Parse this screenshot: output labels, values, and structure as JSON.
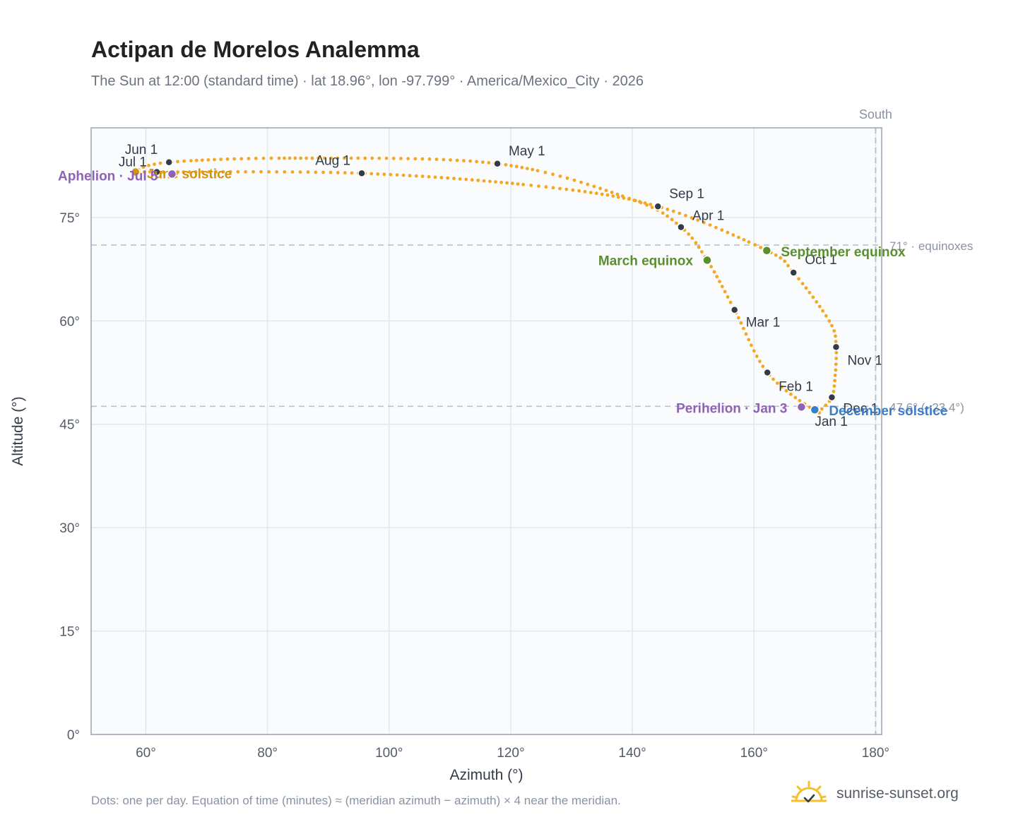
{
  "header": {
    "title": "Actipan de Morelos Analemma",
    "subtitle": "The Sun at 12:00 (standard time) · lat 18.96°, lon -97.799° · America/Mexico_City · 2026"
  },
  "footer": {
    "note": "Dots: one per day. Equation of time (minutes) ≈ (meridian azimuth − azimuth) × 4 near the meridian.",
    "brand": "sunrise-sunset.org"
  },
  "colors": {
    "path": "#f5a623",
    "month_dot": "#333b48",
    "equinox": "#5a8f2e",
    "solstice_summer": "#d4940a",
    "solstice_winter": "#3b7cc4",
    "apsis": "#8e63b5",
    "ref_line": "#b8c2cc",
    "plot_bg": "#f9fbfd",
    "grid": "#e3e8ee",
    "frame": "#9aa4b0"
  },
  "chart_data": {
    "type": "scatter",
    "title": "Actipan de Morelos Analemma",
    "xlabel": "Azimuth (°)",
    "ylabel": "Altitude (°)",
    "xlim": [
      51,
      181
    ],
    "ylim": [
      0,
      88
    ],
    "xticks": [
      60,
      80,
      100,
      120,
      140,
      160,
      180
    ],
    "yticks": [
      0,
      15,
      30,
      45,
      60,
      75
    ],
    "xtick_labels": [
      "60°",
      "80°",
      "100°",
      "120°",
      "140°",
      "160°",
      "180°"
    ],
    "ytick_labels": [
      "0°",
      "15°",
      "30°",
      "45°",
      "60°",
      "75°"
    ],
    "grid": true,
    "meridian": {
      "azimuth": 180,
      "label": "South"
    },
    "reference_lines": [
      {
        "altitude": 71.0,
        "label": "71° · equinoxes"
      },
      {
        "altitude": 47.6,
        "label": "47.6° (−23.4°)"
      }
    ],
    "months": [
      {
        "label": "Jan 1",
        "az": 170.0,
        "alt": 47.0
      },
      {
        "label": "Feb 1",
        "az": 162.2,
        "alt": 52.5
      },
      {
        "label": "Mar 1",
        "az": 156.8,
        "alt": 61.6
      },
      {
        "label": "Apr 1",
        "az": 148.0,
        "alt": 73.6
      },
      {
        "label": "May 1",
        "az": 117.8,
        "alt": 82.8
      },
      {
        "label": "Jun 1",
        "az": 63.8,
        "alt": 83.0
      },
      {
        "label": "Jul 1",
        "az": 61.8,
        "alt": 81.6
      },
      {
        "label": "Aug 1",
        "az": 95.5,
        "alt": 81.4
      },
      {
        "label": "Sep 1",
        "az": 144.2,
        "alt": 76.6
      },
      {
        "label": "Oct 1",
        "az": 166.5,
        "alt": 67.0
      },
      {
        "label": "Nov 1",
        "az": 173.5,
        "alt": 56.2
      },
      {
        "label": "Dec 1",
        "az": 172.8,
        "alt": 48.9
      }
    ],
    "events": [
      {
        "label": "March equinox",
        "az": 152.3,
        "alt": 68.8,
        "kind": "equinox"
      },
      {
        "label": "September equinox",
        "az": 162.1,
        "alt": 70.2,
        "kind": "equinox"
      },
      {
        "label": "June solstice",
        "az": 58.3,
        "alt": 81.6,
        "kind": "solstice_summer"
      },
      {
        "label": "December solstice",
        "az": 170.0,
        "alt": 47.1,
        "kind": "solstice_winter"
      },
      {
        "label": "Aphelion · Jul 5",
        "az": 64.3,
        "alt": 81.3,
        "kind": "apsis"
      },
      {
        "label": "Perihelion · Jan 3",
        "az": 167.8,
        "alt": 47.5,
        "kind": "apsis"
      }
    ],
    "path": [
      [
        170.0,
        47.0
      ],
      [
        162.2,
        52.5
      ],
      [
        156.8,
        61.6
      ],
      [
        152.3,
        68.8
      ],
      [
        148.0,
        73.6
      ],
      [
        140.0,
        77.6
      ],
      [
        117.8,
        82.8
      ],
      [
        85.0,
        83.6
      ],
      [
        63.8,
        83.0
      ],
      [
        58.3,
        81.6
      ],
      [
        61.8,
        81.6
      ],
      [
        95.5,
        81.4
      ],
      [
        125.0,
        79.5
      ],
      [
        144.2,
        76.6
      ],
      [
        162.1,
        70.2
      ],
      [
        166.5,
        67.0
      ],
      [
        172.5,
        59.8
      ],
      [
        173.5,
        56.2
      ],
      [
        173.3,
        51.5
      ],
      [
        172.8,
        48.9
      ],
      [
        171.3,
        47.4
      ],
      [
        170.0,
        47.0
      ]
    ]
  }
}
